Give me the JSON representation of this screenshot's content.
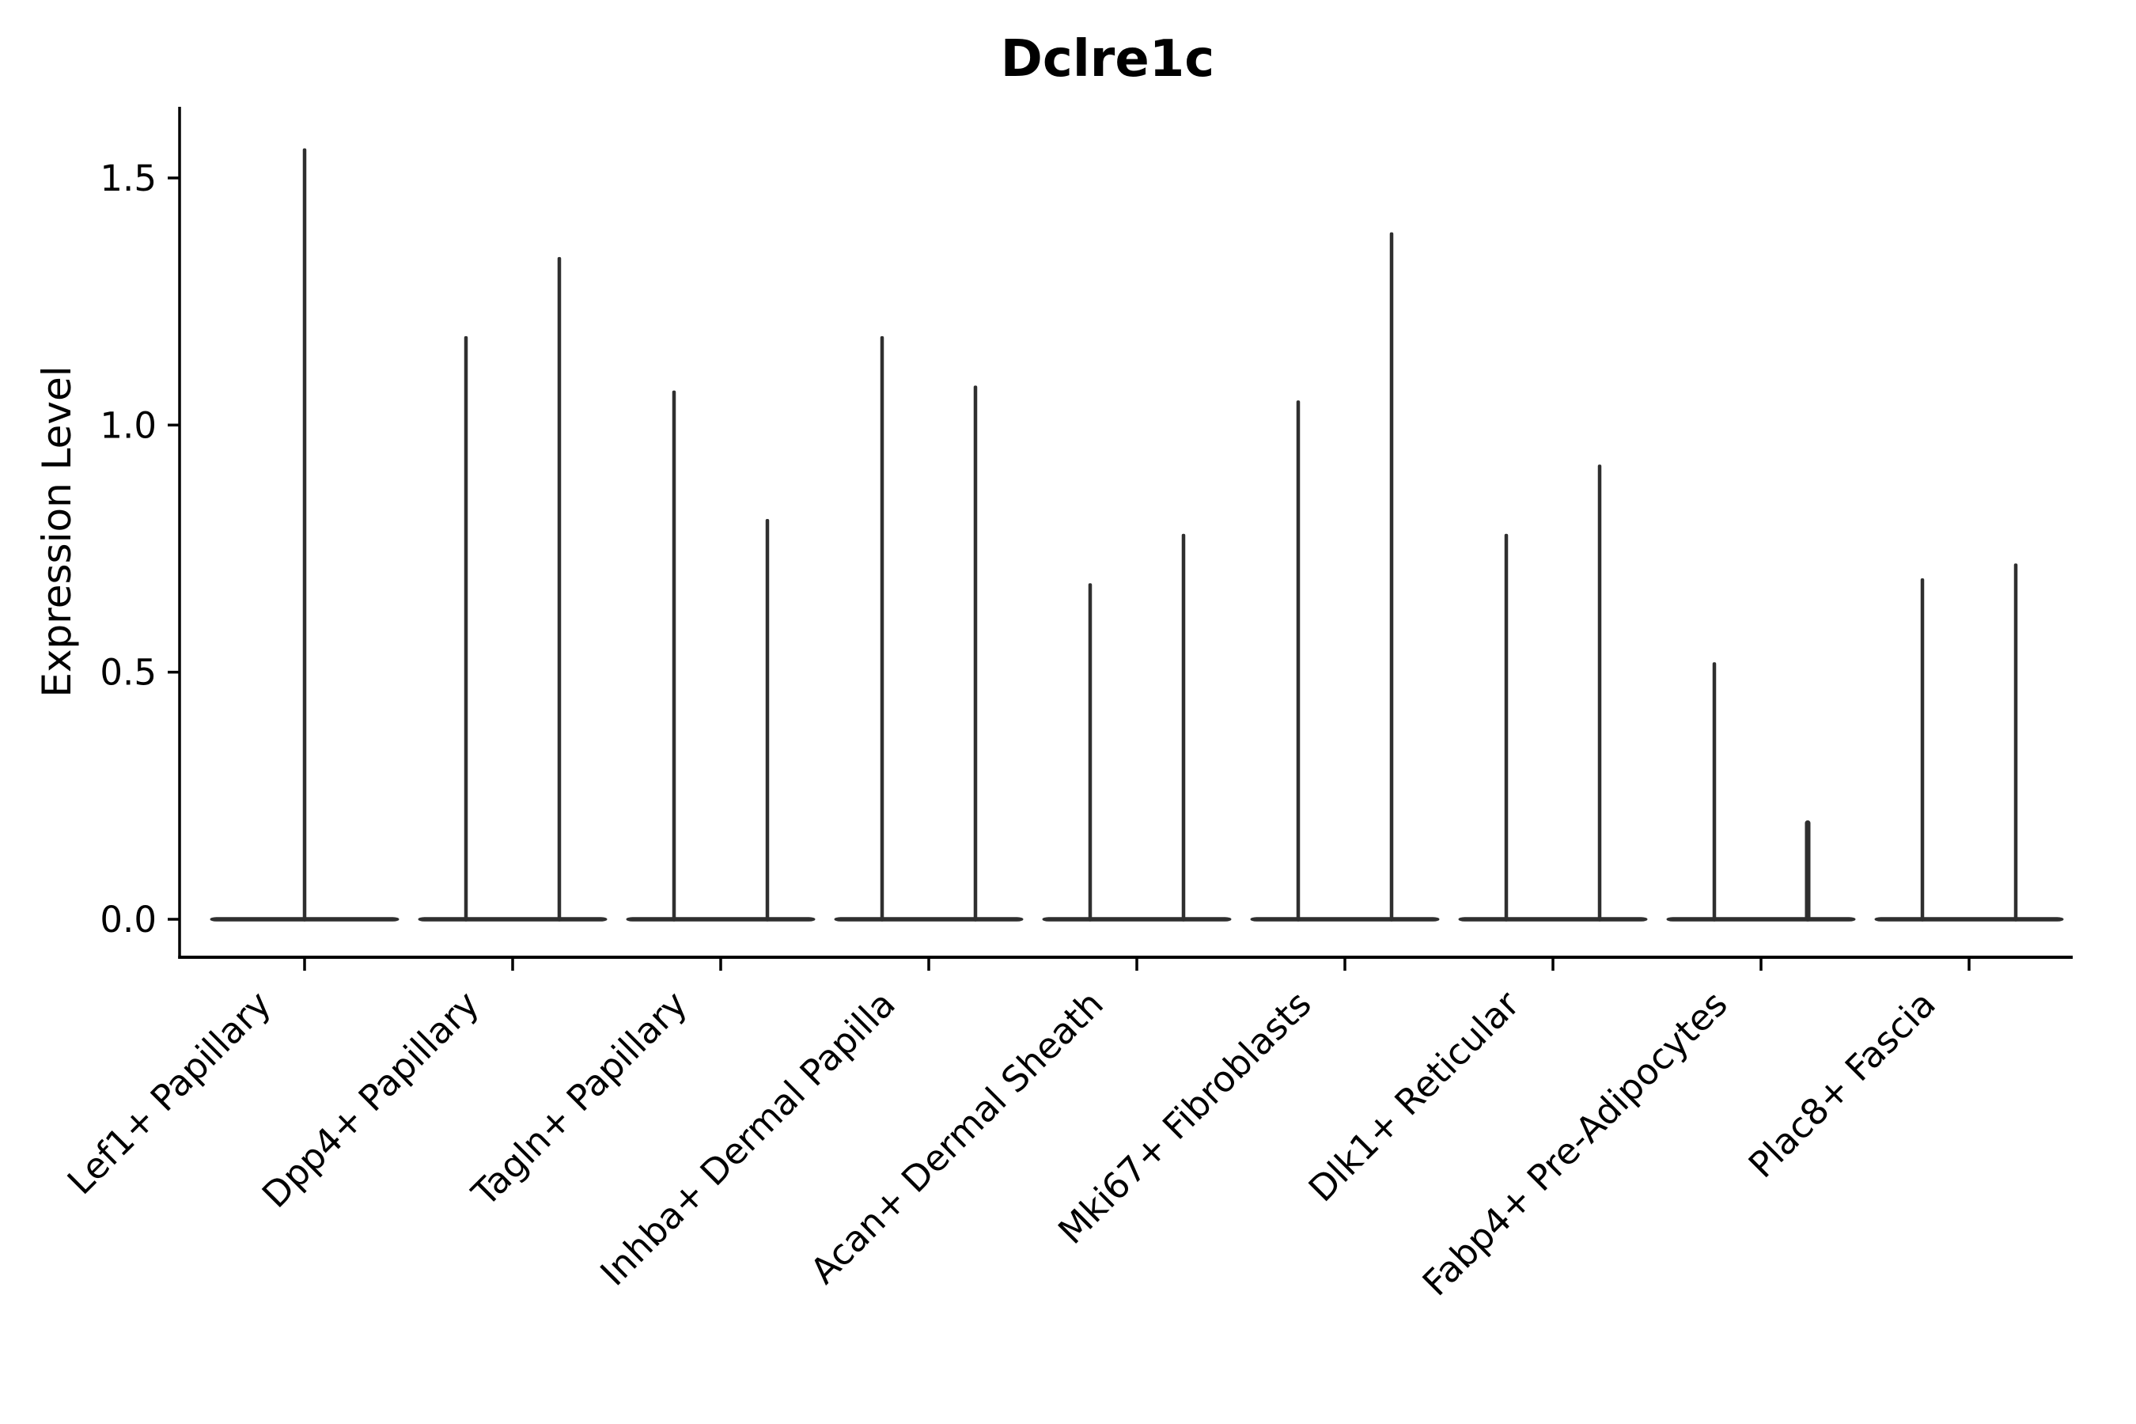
{
  "title": "Dclre1c",
  "chart_data": {
    "type": "violin",
    "title": "Dclre1c",
    "ylabel": "Expression Level",
    "xlabel": "",
    "y_ticks": [
      "0.0",
      "0.5",
      "1.0",
      "1.5"
    ],
    "ylim": [
      -0.08,
      1.64
    ],
    "grid": false,
    "legend": "none",
    "violin_style": "needle violins: wide flat density at 0 with a hair-thin spike up to the maximum expression value; first group has a single violin, all others have two violins side by side",
    "groups": [
      {
        "label": "Lef1+ Papillary",
        "violin_maxima": [
          1.56
        ]
      },
      {
        "label": "Dpp4+ Papillary",
        "violin_maxima": [
          1.18,
          1.34
        ]
      },
      {
        "label": "Tagln+ Papillary",
        "violin_maxima": [
          1.07,
          0.81
        ]
      },
      {
        "label": "Inhba+ Dermal Papilla",
        "violin_maxima": [
          1.18,
          1.08
        ]
      },
      {
        "label": "Acan+ Dermal Sheath",
        "violin_maxima": [
          0.68,
          0.78
        ]
      },
      {
        "label": "Mki67+ Fibroblasts",
        "violin_maxima": [
          1.05,
          1.39
        ]
      },
      {
        "label": "Dlk1+ Reticular",
        "violin_maxima": [
          0.78,
          0.92
        ]
      },
      {
        "label": "Fabp4+ Pre-Adipocytes",
        "violin_maxima": [
          0.52,
          0.2
        ]
      },
      {
        "label": "Plac8+ Fascia",
        "violin_maxima": [
          0.69,
          0.72
        ]
      }
    ],
    "colors": {
      "violin": "#2f2f2f",
      "axis": "#000000",
      "text": "#000000",
      "background": "#ffffff"
    }
  }
}
